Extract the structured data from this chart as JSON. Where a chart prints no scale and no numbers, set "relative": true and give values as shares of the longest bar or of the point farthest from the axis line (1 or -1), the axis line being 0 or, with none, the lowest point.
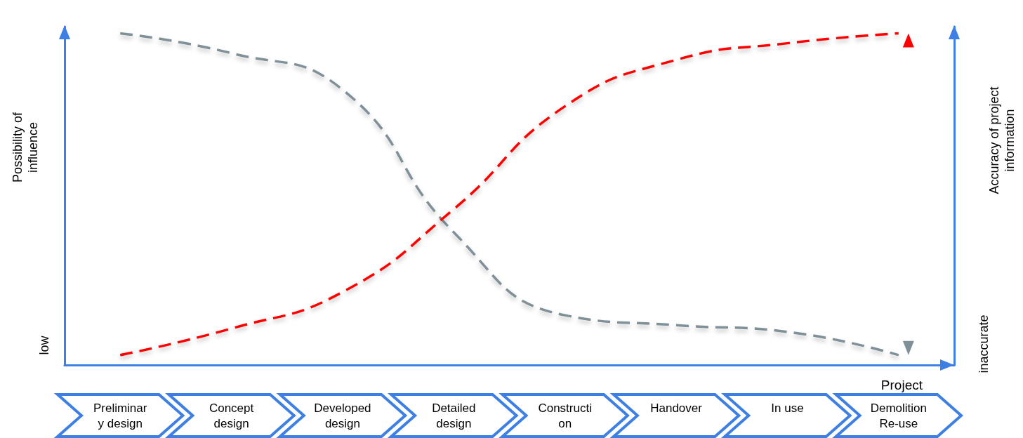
{
  "chart_data": {
    "type": "line",
    "relative": true,
    "xlabel": "Project",
    "ylabel": "Possibility of\ninfluence",
    "y2label": "Accuracy of project\ninformation",
    "annotations": [
      "low",
      "inaccurate"
    ],
    "categories": [
      "Preliminar\ny design",
      "Concept\ndesign",
      "Developed\ndesign",
      "Detailed\ndesign",
      "Constructi\non",
      "Handover",
      "In use",
      "Demolition\nRe-use"
    ],
    "series": [
      {
        "color": "#7f9098",
        "values": [
          1,
          0.94,
          0.83,
          0.4,
          0.15,
          0.12,
          0.1,
          0.03
        ]
      },
      {
        "color": "#ff0000",
        "values": [
          0.03,
          0.11,
          0.22,
          0.47,
          0.78,
          0.92,
          0.97,
          1
        ]
      }
    ],
    "marker": "none",
    "line_style": "dashed",
    "grid": false
  }
}
